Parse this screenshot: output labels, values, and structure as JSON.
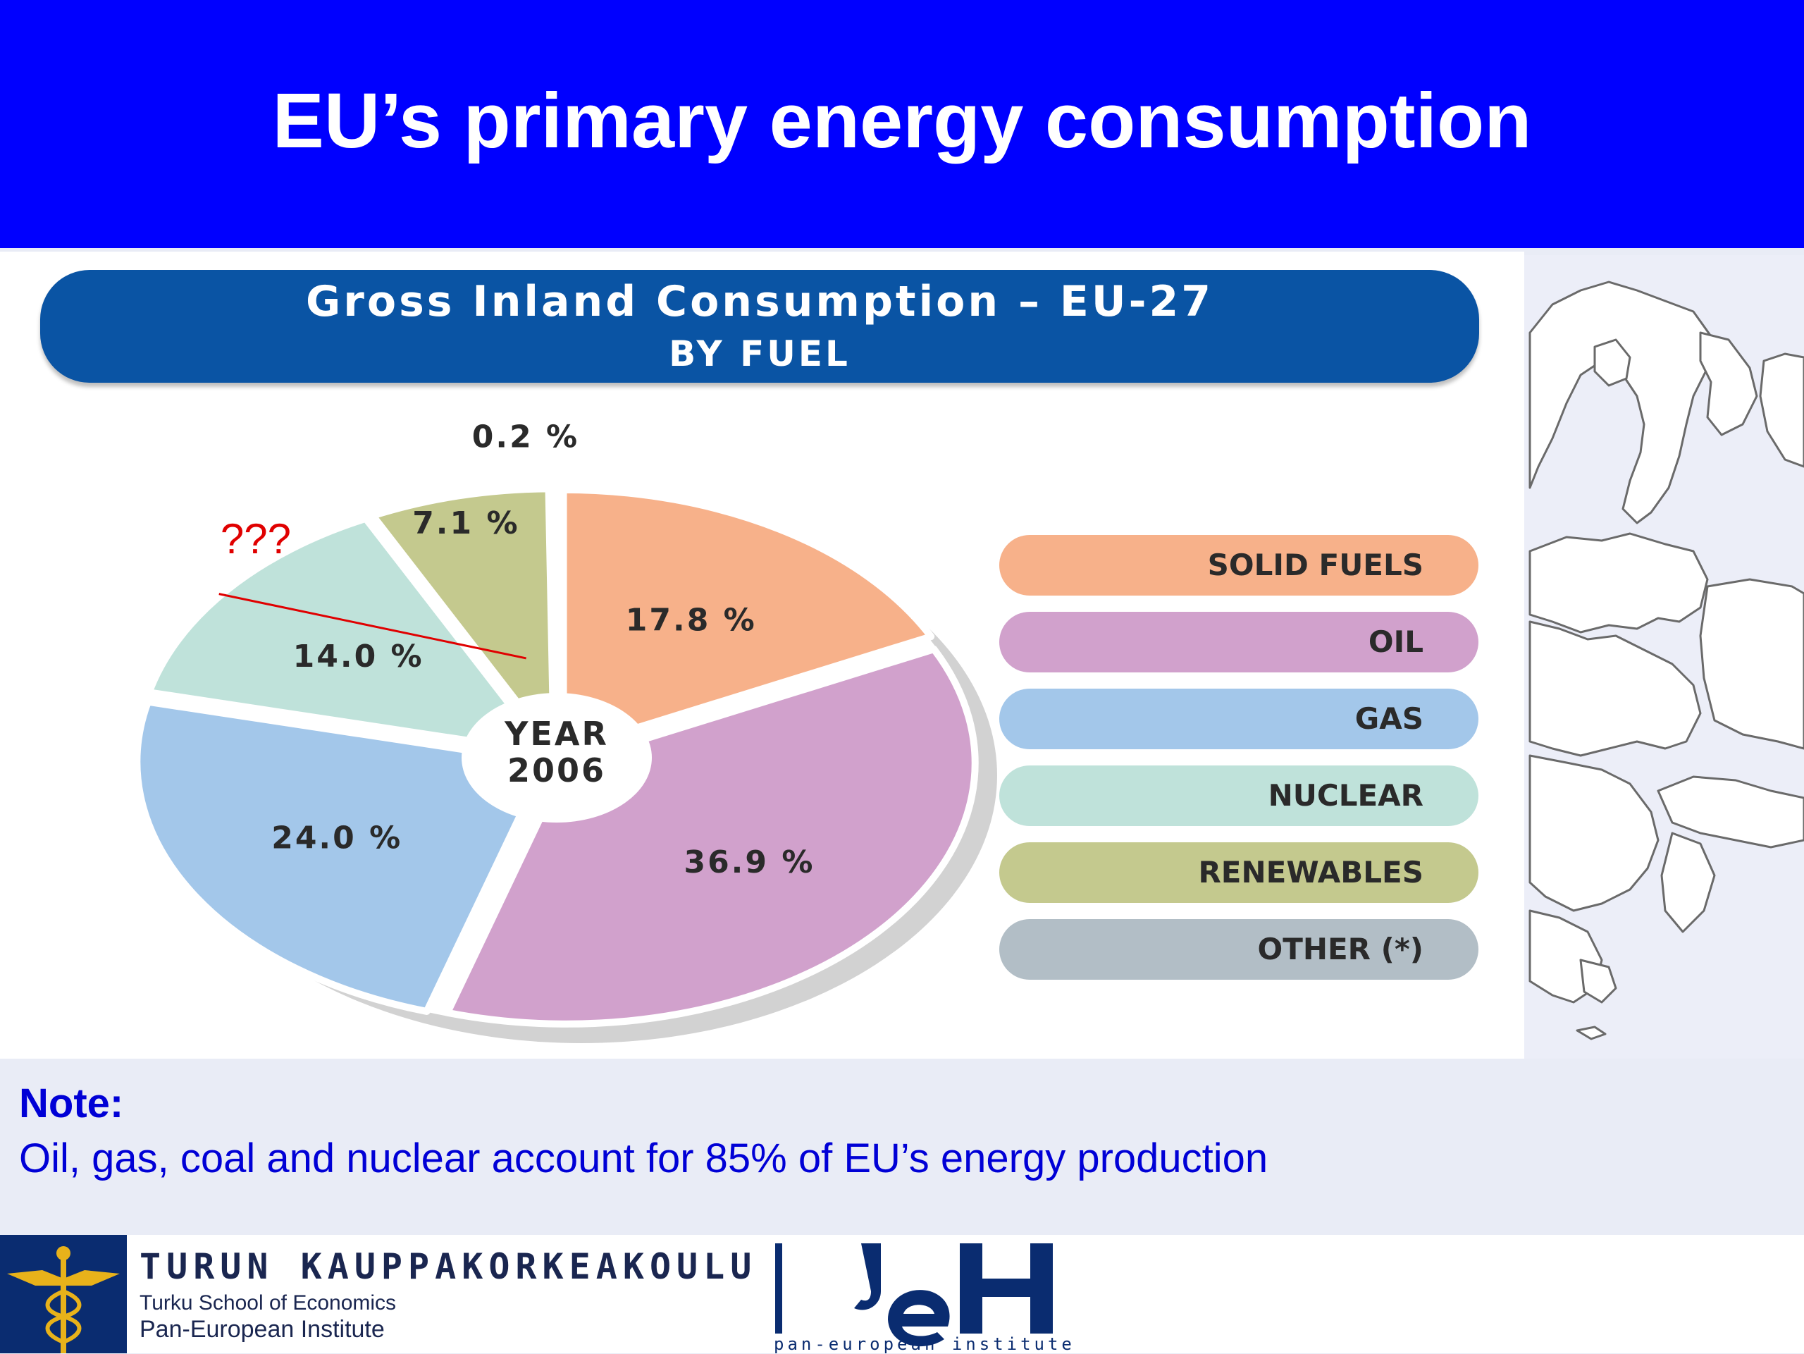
{
  "slide": {
    "title": "EU’s primary energy consumption"
  },
  "chart_header": {
    "title": "Gross Inland Consumption – EU-27",
    "subtitle": "BY FUEL"
  },
  "chart_data": {
    "type": "pie",
    "title": "Gross Inland Consumption – EU-27",
    "subtitle": "BY FUEL",
    "center_label": [
      "YEAR",
      "2006"
    ],
    "categories": [
      "SOLID FUELS",
      "OIL",
      "GAS",
      "NUCLEAR",
      "RENEWABLES",
      "OTHER (*)"
    ],
    "values": [
      17.8,
      36.9,
      24.0,
      14.0,
      7.1,
      0.2
    ],
    "value_labels": [
      "17.8 %",
      "36.9 %",
      "24.0 %",
      "14.0 %",
      "7.1 %",
      "0.2 %"
    ],
    "colors": [
      "#f7b18a",
      "#d1a1cc",
      "#a3c7ea",
      "#bfe2da",
      "#c4c98e",
      "#b2bec6"
    ],
    "legend_placement": "right",
    "annotation": {
      "text": "???",
      "color": "#e00000"
    }
  },
  "note": {
    "heading": "Note:",
    "text": "Oil, gas, coal and nuclear account for 85% of EU’s energy production"
  },
  "footer": {
    "tse_logo": {
      "line1": "TURUN KAUPPAKORKEAKOULU",
      "line2": "Turku School of Economics",
      "line3": "Pan-European Institute"
    },
    "pei_logo": {
      "caption": "pan-european institute"
    }
  }
}
